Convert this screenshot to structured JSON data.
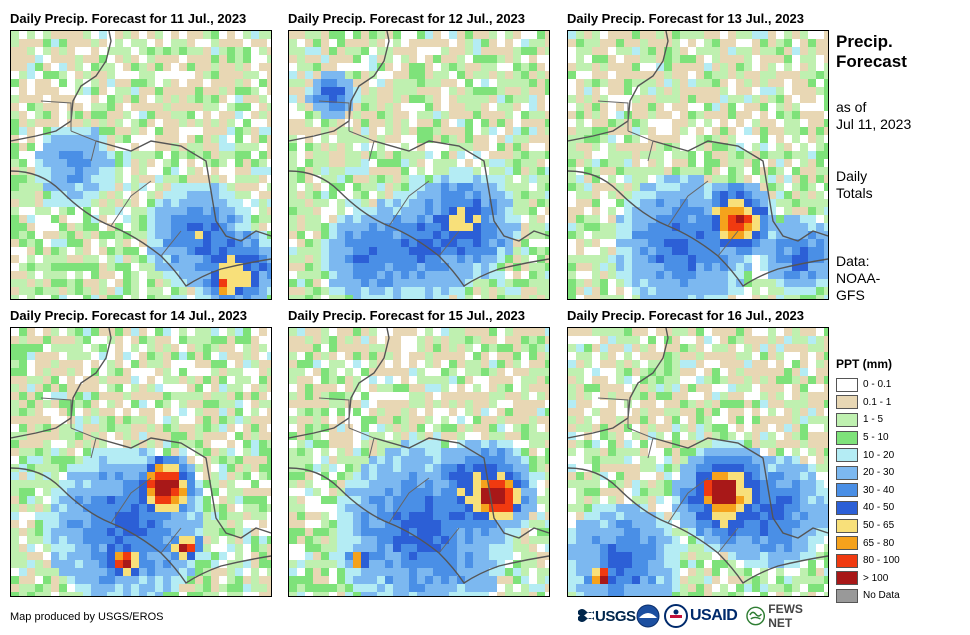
{
  "panels": [
    {
      "title": "Daily Precip. Forecast for 11 Jul., 2023"
    },
    {
      "title": "Daily Precip. Forecast for 12 Jul., 2023"
    },
    {
      "title": "Daily Precip. Forecast for 13 Jul., 2023"
    },
    {
      "title": "Daily Precip. Forecast for 14 Jul., 2023"
    },
    {
      "title": "Daily Precip. Forecast for 15 Jul., 2023"
    },
    {
      "title": "Daily Precip. Forecast for 16 Jul., 2023"
    }
  ],
  "sidebar": {
    "title_line1": "Precip.",
    "title_line2": "Forecast",
    "asof_line1": "as of",
    "asof_line2": "Jul 11, 2023",
    "totals_line1": "Daily",
    "totals_line2": "Totals",
    "data_line1": "Data:",
    "data_line2": "NOAA-",
    "data_line3": "GFS"
  },
  "legend": {
    "title": "PPT (mm)",
    "items": [
      {
        "label": "0 - 0.1",
        "color": "#ffffff"
      },
      {
        "label": "0.1 - 1",
        "color": "#e8d7b4"
      },
      {
        "label": "1 - 5",
        "color": "#bff0b0"
      },
      {
        "label": "5 - 10",
        "color": "#7ee27a"
      },
      {
        "label": "10 - 20",
        "color": "#b4ecf4"
      },
      {
        "label": "20 - 30",
        "color": "#7cb8f0"
      },
      {
        "label": "30 - 40",
        "color": "#4a8fe6"
      },
      {
        "label": "40 - 50",
        "color": "#2c5fd6"
      },
      {
        "label": "50 - 65",
        "color": "#f8e07a"
      },
      {
        "label": "65 - 80",
        "color": "#f5a21c"
      },
      {
        "label": "80 - 100",
        "color": "#f03a10"
      },
      {
        "label": "> 100",
        "color": "#a81818"
      },
      {
        "label": "No Data",
        "color": "#999999"
      }
    ]
  },
  "credit": "Map produced by USGS/EROS",
  "logos": {
    "usgs": "USGS",
    "usaid": "USAID",
    "fews": "FEWS NET"
  }
}
